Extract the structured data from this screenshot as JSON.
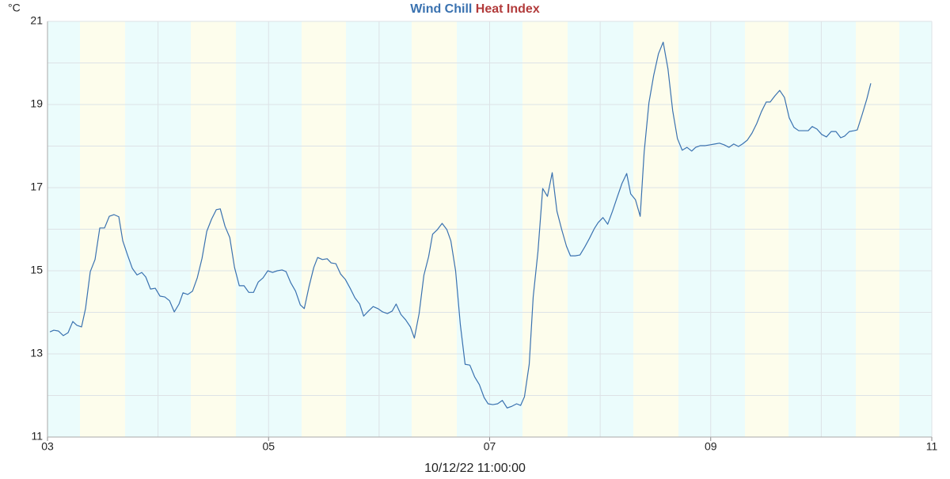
{
  "chart_data": {
    "type": "line",
    "y_unit": "°C",
    "x_label": "10/12/22 11:00:00",
    "legend": [
      {
        "name": "Wind Chill",
        "color": "#3a72b0"
      },
      {
        "name": "Heat Index",
        "color": "#b23b3b"
      }
    ],
    "xlim": [
      3,
      11
    ],
    "xticks": [
      {
        "value": 3,
        "label": "03"
      },
      {
        "value": 4,
        "label": null
      },
      {
        "value": 5,
        "label": "05"
      },
      {
        "value": 6,
        "label": null
      },
      {
        "value": 7,
        "label": "07"
      },
      {
        "value": 8,
        "label": null
      },
      {
        "value": 9,
        "label": "09"
      },
      {
        "value": 10,
        "label": null
      },
      {
        "value": 11,
        "label": "11"
      }
    ],
    "ylim": [
      11,
      21
    ],
    "yticks": [
      11,
      {
        "value": 12,
        "label": null
      },
      13,
      {
        "value": 14,
        "label": null
      },
      15,
      {
        "value": 16,
        "label": null
      },
      17,
      {
        "value": 18,
        "label": null
      },
      19,
      {
        "value": 20,
        "label": null
      },
      21
    ],
    "grid": true,
    "x": [
      3.022,
      3.057,
      3.1,
      3.143,
      3.186,
      3.229,
      3.265,
      3.308,
      3.344,
      3.387,
      3.43,
      3.473,
      3.516,
      3.559,
      3.602,
      3.645,
      3.681,
      3.724,
      3.767,
      3.81,
      3.853,
      3.889,
      3.932,
      3.975,
      4.018,
      4.061,
      4.104,
      4.147,
      4.19,
      4.226,
      4.269,
      4.312,
      4.355,
      4.398,
      4.441,
      4.484,
      4.527,
      4.563,
      4.606,
      4.649,
      4.692,
      4.735,
      4.778,
      4.821,
      4.864,
      4.907,
      4.95,
      4.993,
      5.036,
      5.079,
      5.122,
      5.158,
      5.201,
      5.244,
      5.287,
      5.323,
      5.366,
      5.409,
      5.444,
      5.487,
      5.53,
      5.566,
      5.609,
      5.652,
      5.695,
      5.738,
      5.781,
      5.824,
      5.86,
      5.903,
      5.946,
      5.989,
      6.032,
      6.075,
      6.118,
      6.154,
      6.197,
      6.24,
      6.283,
      6.319,
      6.362,
      6.405,
      6.448,
      6.484,
      6.527,
      6.57,
      6.613,
      6.649,
      6.692,
      6.735,
      6.778,
      6.821,
      6.864,
      6.907,
      6.95,
      6.986,
      7.029,
      7.072,
      7.115,
      7.158,
      7.201,
      7.244,
      7.28,
      7.315,
      7.358,
      7.394,
      7.437,
      7.48,
      7.523,
      7.566,
      7.609,
      7.652,
      7.695,
      7.731,
      7.774,
      7.817,
      7.86,
      7.903,
      7.946,
      7.982,
      8.025,
      8.068,
      8.111,
      8.154,
      8.197,
      8.24,
      8.276,
      8.319,
      8.362,
      8.398,
      8.441,
      8.484,
      8.527,
      8.57,
      8.613,
      8.656,
      8.699,
      8.742,
      8.785,
      8.828,
      8.864,
      8.907,
      8.95,
      8.993,
      9.036,
      9.079,
      9.122,
      9.165,
      9.208,
      9.251,
      9.287,
      9.33,
      9.373,
      9.416,
      9.459,
      9.502,
      9.538,
      9.581,
      9.624,
      9.667,
      9.71,
      9.753,
      9.796,
      9.839,
      9.882,
      9.918,
      9.961,
      10.004,
      10.047,
      10.09,
      10.133,
      10.176,
      10.211,
      10.254,
      10.297,
      10.326,
      10.369,
      10.412,
      10.448
    ],
    "series": [
      {
        "color": "#3a72b0",
        "values": [
          13.53,
          13.57,
          13.55,
          13.44,
          13.51,
          13.78,
          13.69,
          13.65,
          14.09,
          14.98,
          15.27,
          16.03,
          16.03,
          16.31,
          16.35,
          16.3,
          15.72,
          15.38,
          15.06,
          14.9,
          14.96,
          14.85,
          14.56,
          14.58,
          14.39,
          14.37,
          14.28,
          14.01,
          14.2,
          14.47,
          14.43,
          14.51,
          14.83,
          15.3,
          15.95,
          16.24,
          16.47,
          16.49,
          16.07,
          15.8,
          15.08,
          14.64,
          14.64,
          14.48,
          14.48,
          14.73,
          14.83,
          15.0,
          14.96,
          15.0,
          15.02,
          14.98,
          14.71,
          14.51,
          14.18,
          14.09,
          14.62,
          15.08,
          15.32,
          15.27,
          15.29,
          15.19,
          15.17,
          14.92,
          14.79,
          14.58,
          14.35,
          14.2,
          13.91,
          14.03,
          14.14,
          14.09,
          14.01,
          13.97,
          14.03,
          14.2,
          13.95,
          13.82,
          13.65,
          13.38,
          13.97,
          14.89,
          15.34,
          15.88,
          15.99,
          16.14,
          15.99,
          15.72,
          15.0,
          13.7,
          12.75,
          12.73,
          12.45,
          12.26,
          11.95,
          11.8,
          11.78,
          11.8,
          11.88,
          11.7,
          11.74,
          11.8,
          11.76,
          11.97,
          12.75,
          14.37,
          15.46,
          16.98,
          16.79,
          17.36,
          16.43,
          15.99,
          15.59,
          15.36,
          15.36,
          15.38,
          15.57,
          15.78,
          16.01,
          16.16,
          16.28,
          16.12,
          16.43,
          16.77,
          17.1,
          17.34,
          16.85,
          16.71,
          16.31,
          17.86,
          19.04,
          19.7,
          20.22,
          20.5,
          19.86,
          18.85,
          18.18,
          17.9,
          17.97,
          17.88,
          17.97,
          18.01,
          18.01,
          18.03,
          18.05,
          18.07,
          18.03,
          17.97,
          18.05,
          17.99,
          18.05,
          18.14,
          18.31,
          18.54,
          18.83,
          19.06,
          19.06,
          19.21,
          19.34,
          19.17,
          18.68,
          18.45,
          18.37,
          18.37,
          18.37,
          18.47,
          18.41,
          18.28,
          18.22,
          18.35,
          18.35,
          18.2,
          18.24,
          18.35,
          18.37,
          18.39,
          18.75,
          19.13,
          19.51
        ]
      }
    ]
  }
}
